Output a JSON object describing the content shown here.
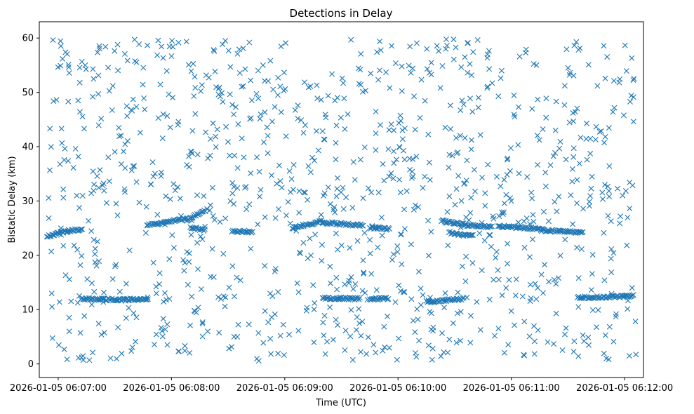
{
  "chart_data": {
    "type": "scatter",
    "title": "Detections in Delay",
    "xlabel": "Time (UTC)",
    "ylabel": "Bistatic Delay (km)",
    "marker": "x",
    "color": "#1f77b4",
    "xlim_seconds": [
      -10,
      310
    ],
    "ylim": [
      -2.5,
      63
    ],
    "x_ticks": [
      {
        "t": 0,
        "label": "2026-01-05 06:07:00"
      },
      {
        "t": 60,
        "label": "2026-01-05 06:08:00"
      },
      {
        "t": 120,
        "label": "2026-01-05 06:09:00"
      },
      {
        "t": 180,
        "label": "2026-01-05 06:10:00"
      },
      {
        "t": 240,
        "label": "2026-01-05 06:11:00"
      },
      {
        "t": 300,
        "label": "2026-01-05 06:12:00"
      }
    ],
    "y_ticks": [
      0,
      10,
      20,
      30,
      40,
      50,
      60
    ],
    "tracks": [
      {
        "t_start": -6,
        "t_end": 5,
        "d_start": 23.5,
        "d_end": 24.5
      },
      {
        "t_start": 5,
        "t_end": 13,
        "d_start": 24.5,
        "d_end": 24.8
      },
      {
        "t_start": 47,
        "t_end": 68,
        "d_start": 25.5,
        "d_end": 26.8
      },
      {
        "t_start": 68,
        "t_end": 78,
        "d_start": 26.5,
        "d_end": 28.2
      },
      {
        "t_start": 70,
        "t_end": 78,
        "d_start": 25.2,
        "d_end": 24.6
      },
      {
        "t_start": 92,
        "t_end": 103,
        "d_start": 24.5,
        "d_end": 24.3
      },
      {
        "t_start": 124,
        "t_end": 140,
        "d_start": 25.0,
        "d_end": 26.3
      },
      {
        "t_start": 140,
        "t_end": 162,
        "d_start": 26.0,
        "d_end": 25.5
      },
      {
        "t_start": 165,
        "t_end": 176,
        "d_start": 25.1,
        "d_end": 24.8
      },
      {
        "t_start": 203,
        "t_end": 216,
        "d_start": 26.3,
        "d_end": 25.6
      },
      {
        "t_start": 216,
        "t_end": 230,
        "d_start": 25.5,
        "d_end": 25.2
      },
      {
        "t_start": 233,
        "t_end": 257,
        "d_start": 25.4,
        "d_end": 24.8
      },
      {
        "t_start": 257,
        "t_end": 278,
        "d_start": 24.6,
        "d_end": 24.2
      },
      {
        "t_start": 207,
        "t_end": 220,
        "d_start": 24.2,
        "d_end": 23.5
      },
      {
        "t_start": 12,
        "t_end": 36,
        "d_start": 12.0,
        "d_end": 11.8
      },
      {
        "t_start": 36,
        "t_end": 48,
        "d_start": 11.9,
        "d_end": 11.8
      },
      {
        "t_start": 140,
        "t_end": 160,
        "d_start": 12.1,
        "d_end": 12.0
      },
      {
        "t_start": 165,
        "t_end": 175,
        "d_start": 12.0,
        "d_end": 12.0
      },
      {
        "t_start": 195,
        "t_end": 215,
        "d_start": 11.4,
        "d_end": 12.0
      },
      {
        "t_start": 275,
        "t_end": 305,
        "d_start": 12.2,
        "d_end": 12.5
      }
    ],
    "clutter": {
      "t_min": -6,
      "t_max": 306,
      "d_min": 0.5,
      "d_max": 59.8,
      "count": 1050,
      "seed": 20260105
    }
  }
}
